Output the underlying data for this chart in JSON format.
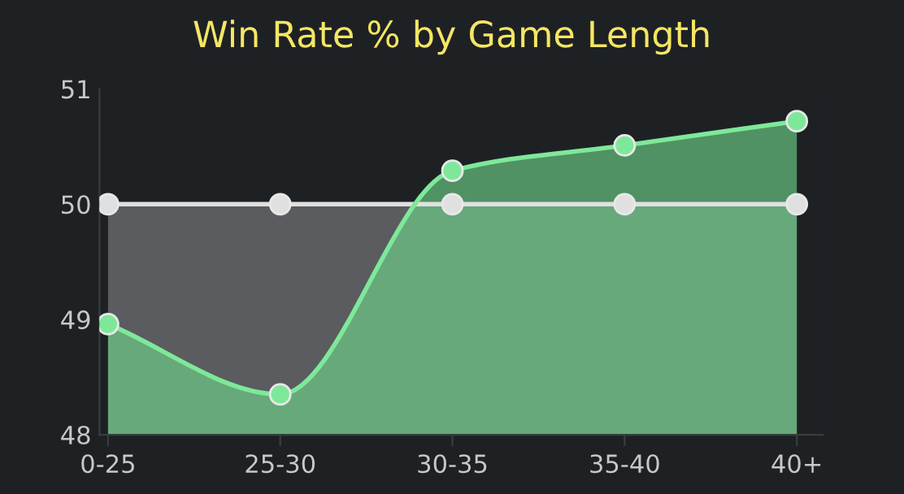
{
  "chart_data": {
    "type": "area",
    "title": "Win Rate % by Game Length",
    "categories": [
      "0-25",
      "25-30",
      "30-35",
      "35-40",
      "40+"
    ],
    "series": [
      {
        "color": "#e0e0e0",
        "values": [
          50,
          50,
          50,
          50,
          50
        ]
      },
      {
        "color": "#7ee89a",
        "values": [
          48.96,
          48.35,
          50.29,
          50.51,
          50.72
        ]
      }
    ],
    "ylim": [
      48,
      51
    ],
    "yticks": [
      48,
      49,
      50,
      51
    ],
    "grid": false,
    "legend": false,
    "marker": "circle",
    "line_style": "solid"
  }
}
